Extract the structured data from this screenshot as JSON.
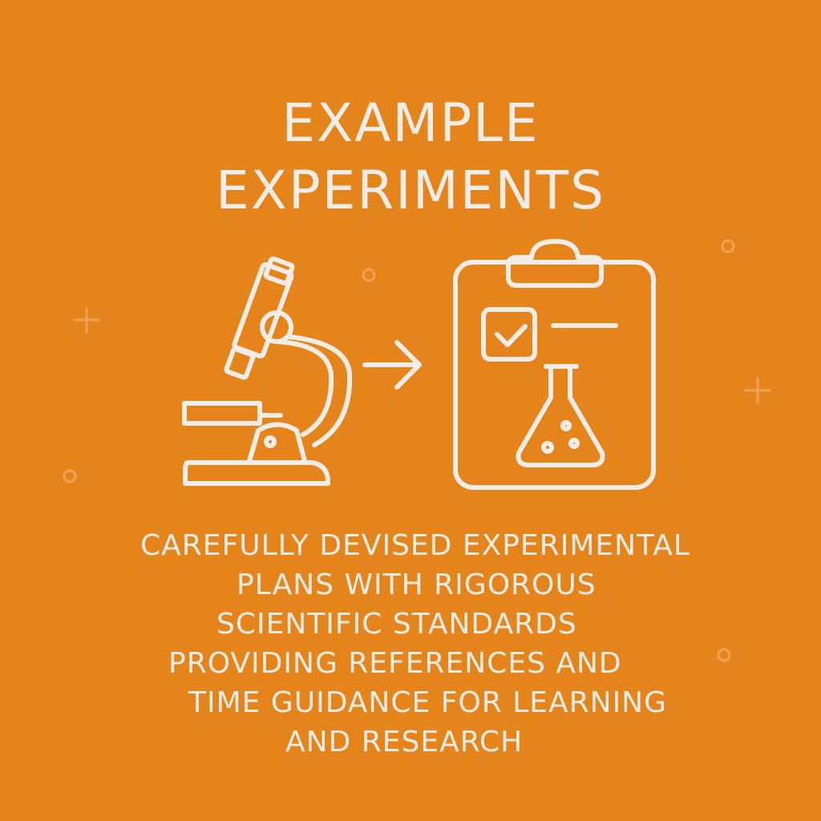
{
  "palette": {
    "background": "#e5841a",
    "foreground": "#f1ede6",
    "accent_mark": "#f1a25a"
  },
  "title": {
    "line1": "EXAMPLE",
    "line2": "EXPERIMENTS"
  },
  "description": {
    "lines": [
      "CAREFULLY DEVISED EXPERIMENTAL",
      "PLANS WITH RIGOROUS",
      "SCIENTIFIC STANDARDS",
      "PROVIDING REFERENCES AND",
      "TIME GUIDANCE FOR LEARNING",
      "AND RESEARCH"
    ]
  },
  "icons": {
    "left": "microscope-icon",
    "middle": "arrow-right-icon",
    "right": "clipboard-flask-icon",
    "decor": [
      "plus-icon",
      "circle-icon"
    ]
  }
}
